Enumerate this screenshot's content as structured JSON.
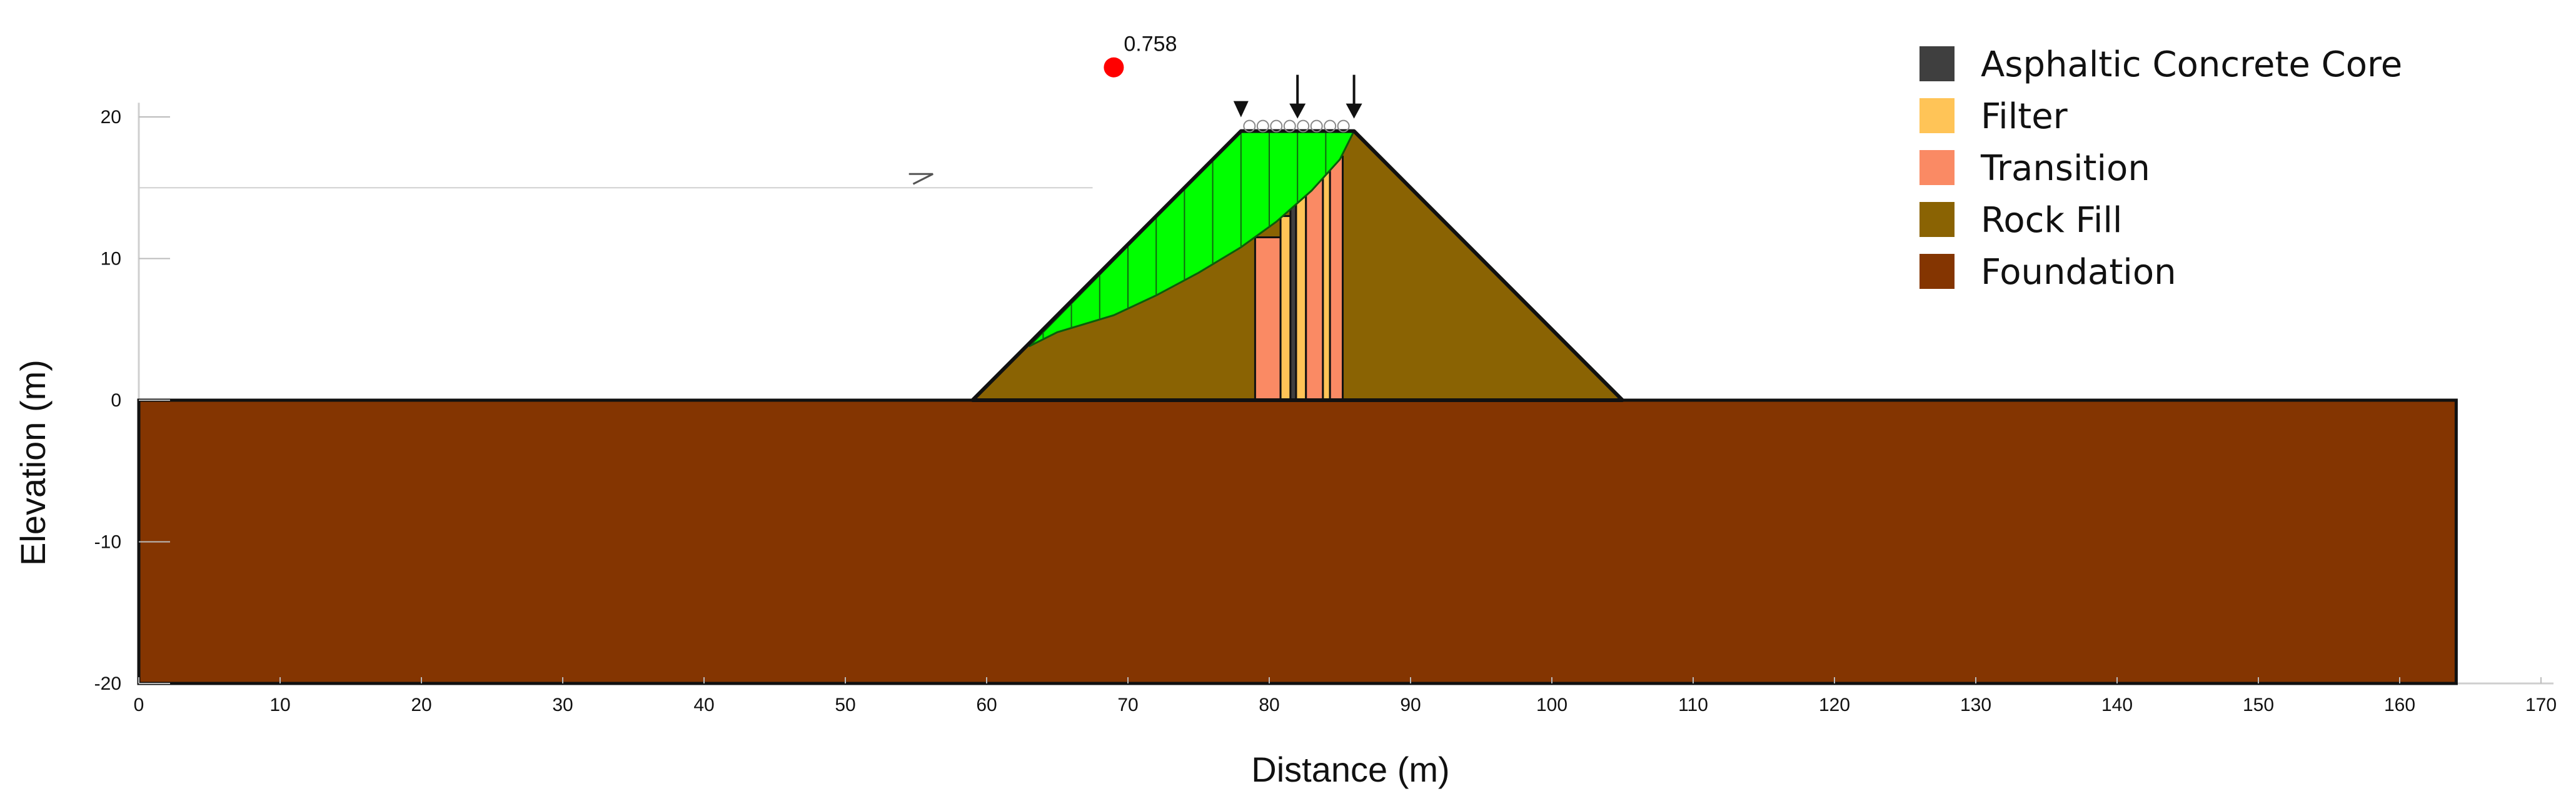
{
  "chart_data": {
    "type": "diagram",
    "xlabel": "Distance (m)",
    "ylabel": "Elevation (m)",
    "xlim": [
      0,
      170
    ],
    "ylim": [
      -20,
      20
    ],
    "x_ticks": [
      0,
      10,
      20,
      30,
      40,
      50,
      60,
      70,
      80,
      90,
      100,
      110,
      120,
      130,
      140,
      150,
      160,
      170
    ],
    "y_ticks": [
      -20,
      -10,
      0,
      10,
      20
    ],
    "grid": false,
    "legend_position": "top-right",
    "materials": [
      {
        "name": "Asphaltic Concrete Core",
        "color": "#3f3f3f"
      },
      {
        "name": "Filter",
        "color": "#ffc457"
      },
      {
        "name": "Transition",
        "color": "#fa8a64"
      },
      {
        "name": "Rock Fill",
        "color": "#8a6303"
      },
      {
        "name": "Foundation",
        "color": "#843501"
      }
    ],
    "foundation": {
      "x": [
        0,
        164
      ],
      "y": [
        -20,
        0
      ]
    },
    "embankment": {
      "toe_left": 59,
      "crest_left": 78,
      "crest_right": 86,
      "toe_right": 105,
      "crest_elevation": 19
    },
    "core_zones": [
      {
        "material": "Transition",
        "x": [
          79,
          80.8
        ],
        "top": 11.5
      },
      {
        "material": "Filter",
        "x": [
          80.8,
          81.5
        ],
        "top": 13
      },
      {
        "material": "Asphaltic Concrete Core",
        "x": [
          81.5,
          81.9
        ],
        "top": 14
      },
      {
        "material": "Filter",
        "x": [
          81.9,
          82.6
        ],
        "top": 14.8
      },
      {
        "material": "Transition",
        "x": [
          82.6,
          83.8
        ],
        "top": 15.8
      },
      {
        "material": "Filter",
        "x": [
          83.8,
          84.3
        ],
        "top": 16.5
      },
      {
        "material": "Transition",
        "x": [
          84.3,
          85.2
        ],
        "top": 17.2
      }
    ],
    "reservoir_level": 15,
    "slip_surface": {
      "color": "#00ff00",
      "points": [
        [
          63,
          3.8
        ],
        [
          65,
          4.8
        ],
        [
          69,
          6
        ],
        [
          72,
          7.4
        ],
        [
          75,
          9
        ],
        [
          78,
          10.8
        ],
        [
          80.5,
          12.6
        ],
        [
          83,
          14.8
        ],
        [
          85,
          17
        ],
        [
          86,
          19
        ]
      ],
      "slice_x": [
        64,
        66,
        68,
        70,
        72,
        74,
        76,
        78,
        80,
        82,
        84
      ]
    },
    "critical_factor_of_safety": {
      "value": "0.758",
      "x": 69,
      "y": 23.5,
      "color": "#ff0000"
    },
    "loads": [
      {
        "x": 78,
        "type": "triangle"
      },
      {
        "x": 82,
        "type": "arrow"
      },
      {
        "x": 86,
        "type": "arrow"
      }
    ]
  }
}
